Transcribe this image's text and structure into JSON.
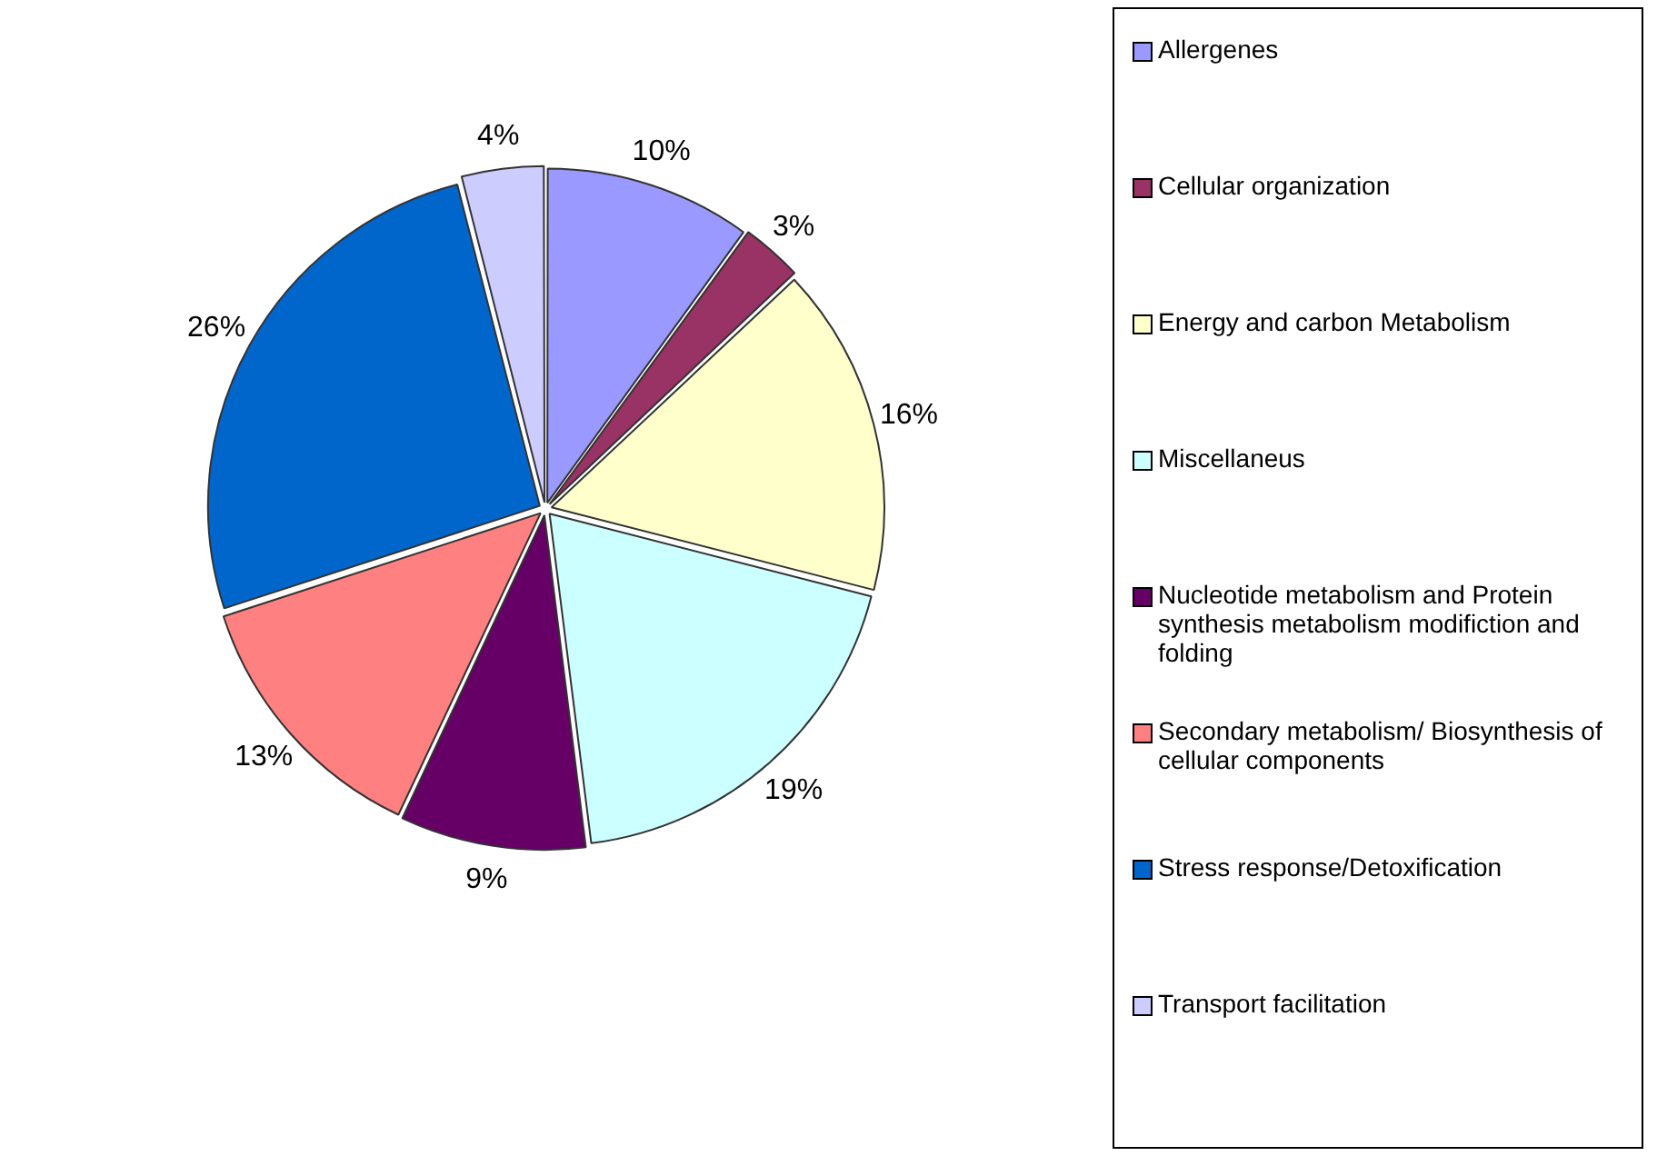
{
  "chart_data": {
    "type": "pie",
    "categories": [
      "Allergenes",
      "Cellular organization",
      "Energy and carbon Metabolism",
      "Miscellaneus",
      "Nucleotide metabolism and Protein synthesis metabolism modifiction and folding",
      "Secondary metabolism/ Biosynthesis of cellular components",
      "Stress response/Detoxification",
      "Transport facilitation"
    ],
    "values": [
      10,
      3,
      16,
      19,
      9,
      13,
      26,
      4
    ],
    "colors": [
      "#9999ff",
      "#993366",
      "#ffffcc",
      "#ccffff",
      "#660066",
      "#ff8080",
      "#0066cc",
      "#ccccff"
    ],
    "value_labels": [
      "10%",
      "3%",
      "16%",
      "19%",
      "9%",
      "13%",
      "26%",
      "4%"
    ],
    "legend": "right"
  }
}
